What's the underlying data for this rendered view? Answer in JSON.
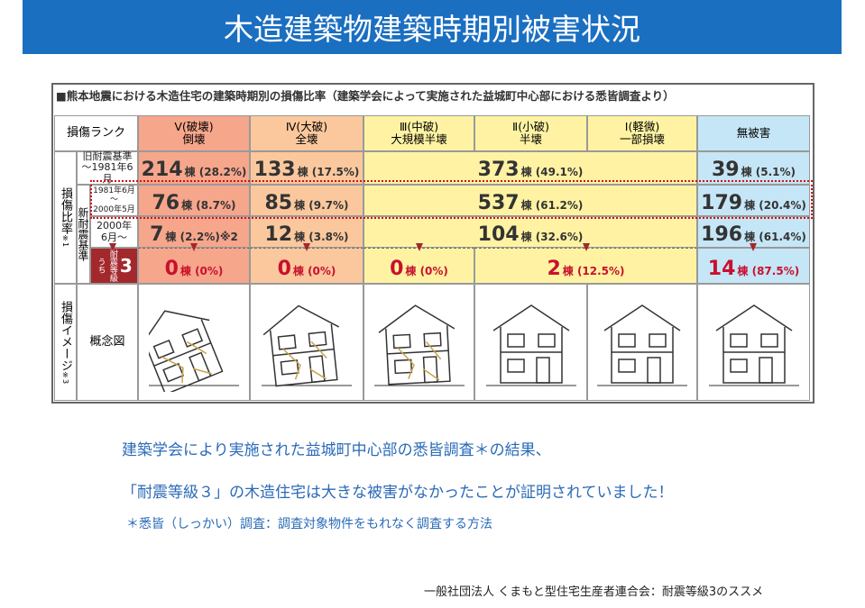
{
  "header": {
    "title": "木造建築物建築時期別被害状況"
  },
  "table": {
    "caption": "■熊本地震における木造住宅の建築時期別の損傷比率（建築学会によって実施された益城町中心部における悉皆調査より）",
    "corner": "損傷ランク",
    "columns": [
      {
        "rank": "Ⅴ(破壊)",
        "label": "倒壊"
      },
      {
        "rank": "Ⅳ(大破)",
        "label": "全壊"
      },
      {
        "rank": "Ⅲ(中破)",
        "label": "大規模半壊"
      },
      {
        "rank": "Ⅱ(小破)",
        "label": "半壊"
      },
      {
        "rank": "Ⅰ(軽微)",
        "label": "一部損壊"
      },
      {
        "label": "無被害"
      }
    ],
    "side_label": "損傷比率",
    "side_note": "※1",
    "new_label": "新耐震基準",
    "rows": [
      {
        "label": [
          "旧耐震基準",
          "～1981年6月"
        ],
        "cells": [
          {
            "count": "214",
            "detail": "棟 (28.2%)"
          },
          {
            "count": "133",
            "detail": "棟 (17.5%)"
          },
          {
            "count": "373",
            "detail": "棟 (49.1%)"
          },
          {
            "count": "39",
            "detail": "棟 (5.1%)"
          }
        ]
      },
      {
        "label": [
          "1981年6月",
          "～",
          "2000年5月"
        ],
        "cells": [
          {
            "count": "76",
            "detail": "棟 (8.7%)"
          },
          {
            "count": "85",
            "detail": "棟 (9.7%)"
          },
          {
            "count": "537",
            "detail": "棟 (61.2%)"
          },
          {
            "count": "179",
            "detail": "棟 (20.4%)"
          }
        ]
      },
      {
        "label": [
          "2000年",
          "6月～"
        ],
        "cells": [
          {
            "count": "7",
            "detail": "棟 (2.2%)※2"
          },
          {
            "count": "12",
            "detail": "棟 (3.8%)"
          },
          {
            "count": "104",
            "detail": "棟 (32.6%)"
          },
          {
            "count": "196",
            "detail": "棟 (61.4%)"
          }
        ]
      },
      {
        "label": [
          "うち",
          "耐震等級",
          "3"
        ],
        "cells": [
          {
            "count": "0",
            "detail": "棟 (0%)"
          },
          {
            "count": "0",
            "detail": "棟 (0%)"
          },
          {
            "count": "0",
            "detail": "棟 (0%)"
          },
          {
            "count": "2",
            "detail": "棟 (12.5%)"
          },
          {
            "count": "14",
            "detail": "棟 (87.5%)"
          }
        ]
      }
    ],
    "image_label": "損傷イメージ",
    "image_note": "※3",
    "image_row": "概念図"
  },
  "body": {
    "lines": [
      "建築学会により実施された益城町中心部の悉皆調査＊の結果、",
      "「耐震等級３」の木造住宅は大きな被害がなかったことが証明されていました！"
    ],
    "note": "＊悉皆（しっかい）調査：調査対象物件をもれなく調査する方法"
  },
  "footer": "一般社団法人 くまもと型住宅生産者連合会：耐震等級3のススメ"
}
